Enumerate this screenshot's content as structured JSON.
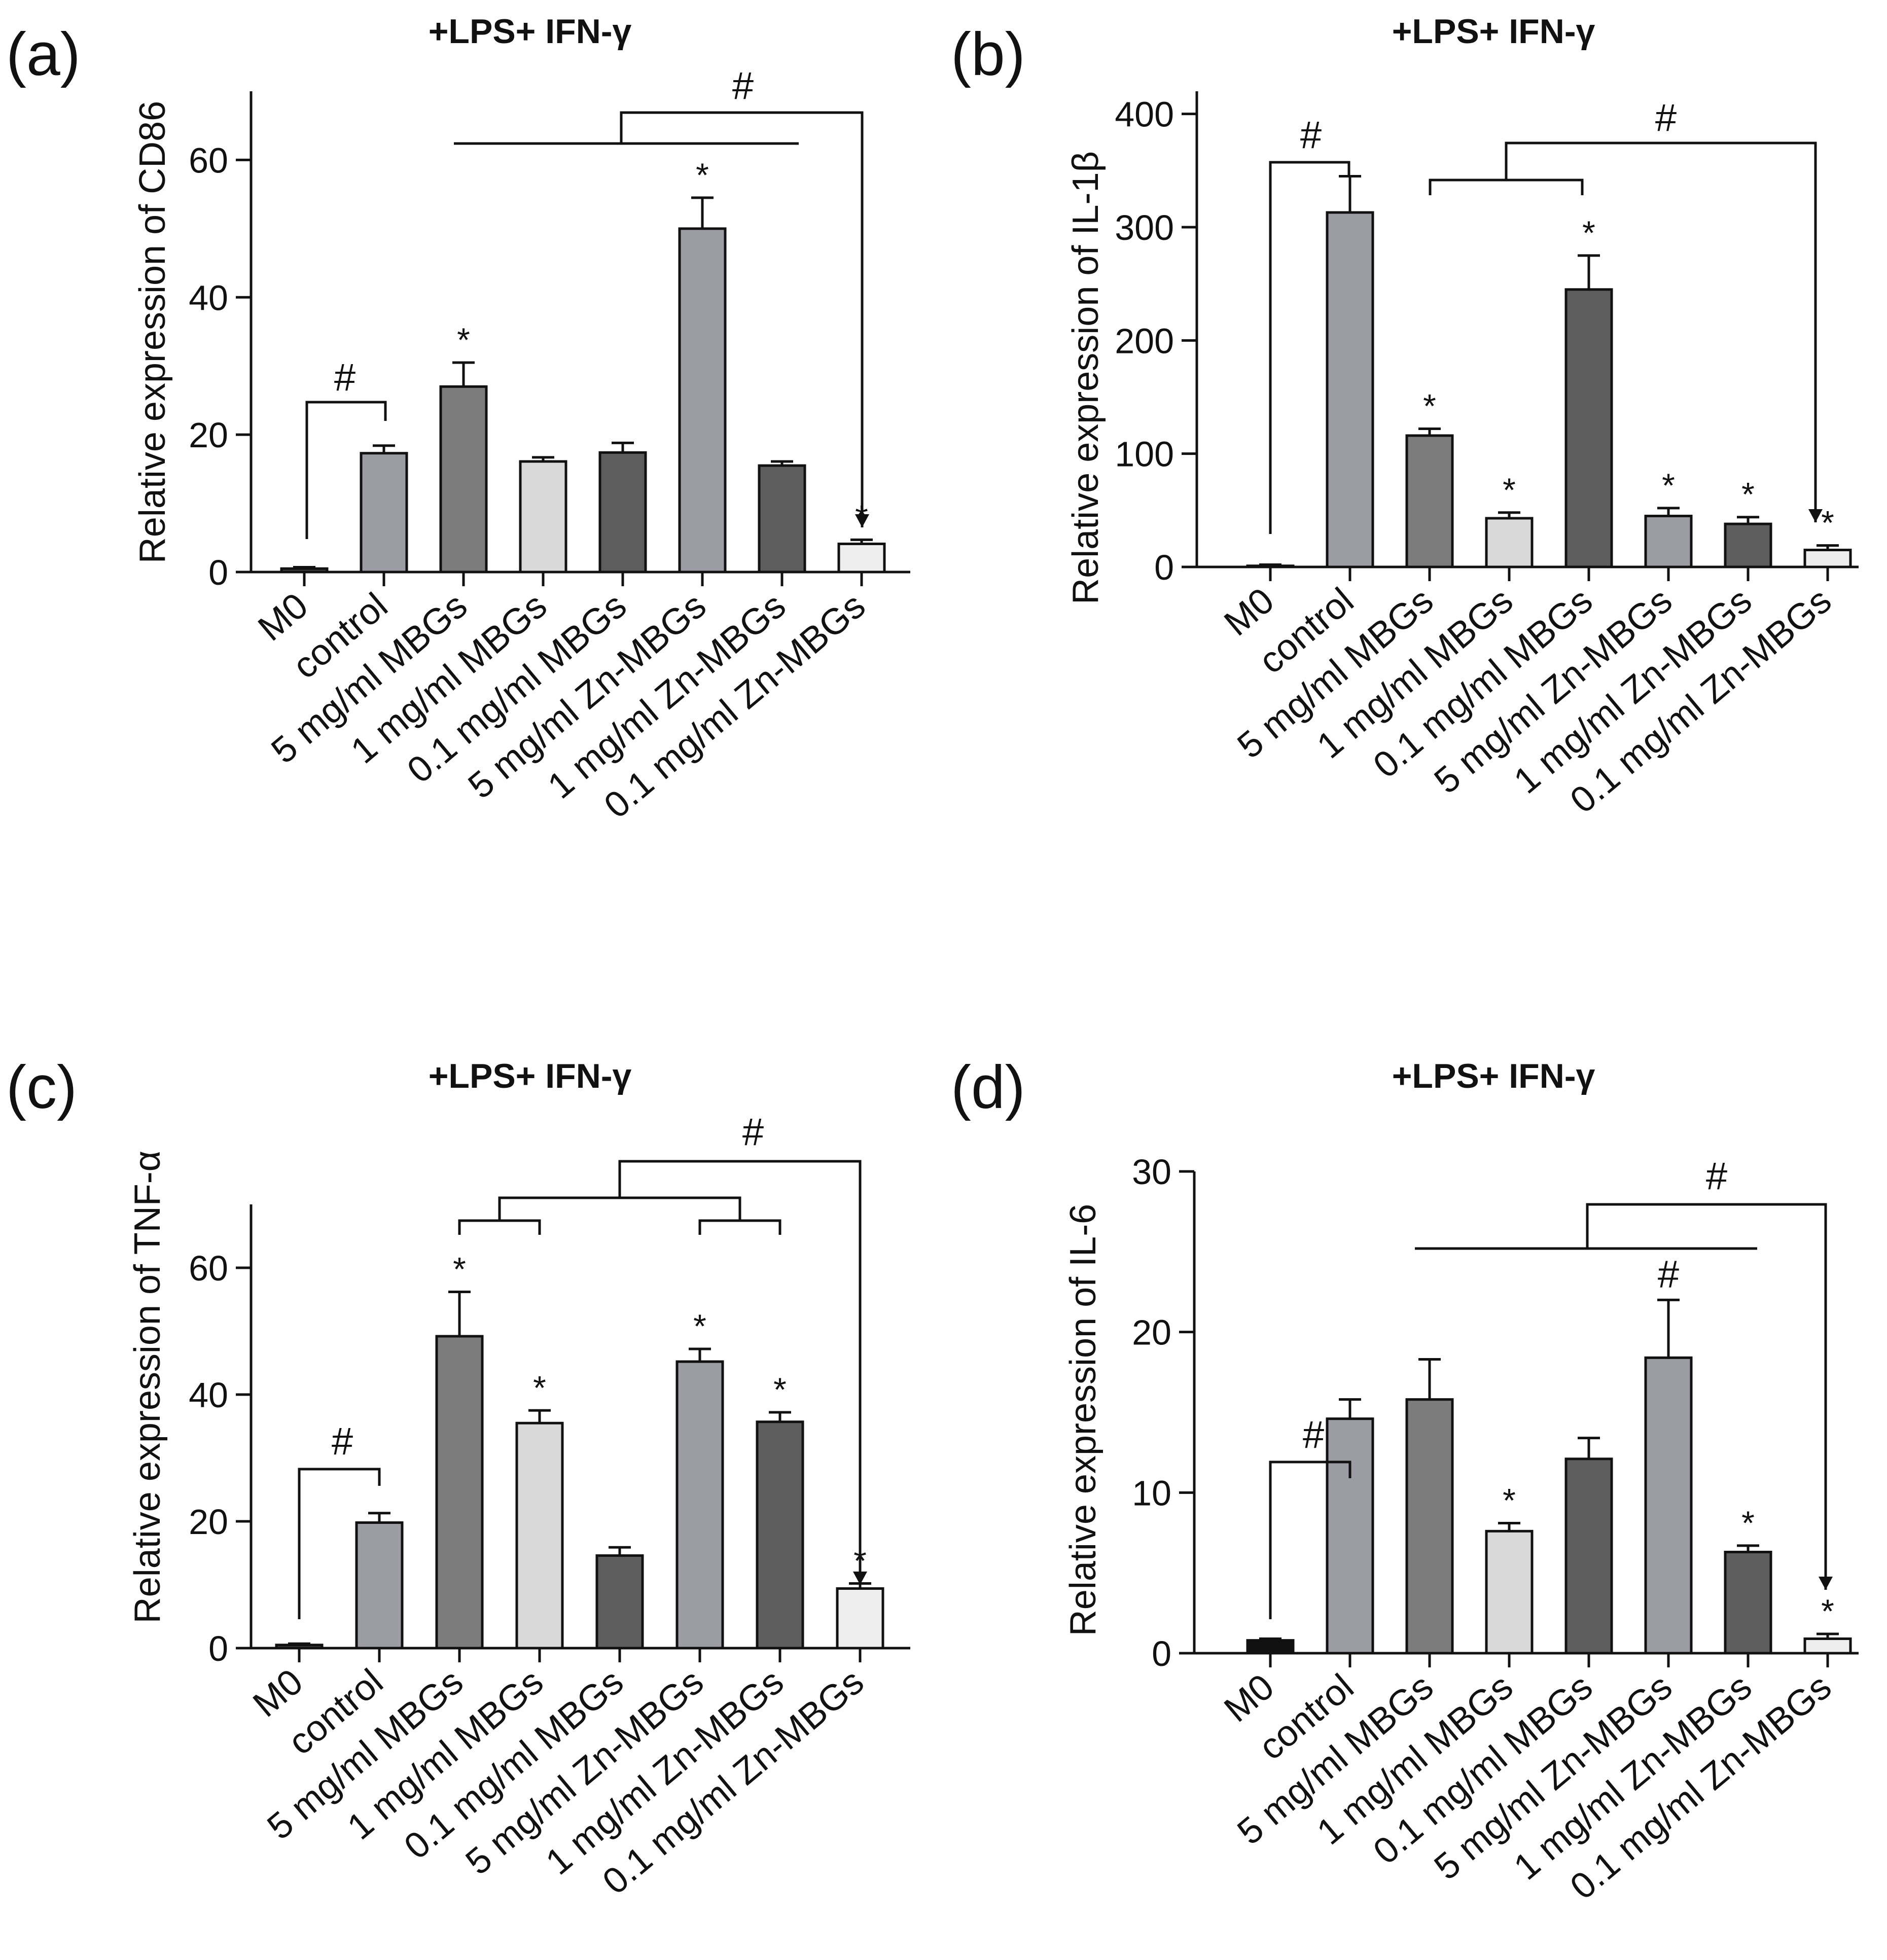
{
  "chart_data": [
    {
      "type": "bar",
      "panel": "(a)",
      "title": "+LPS+ IFN-γ",
      "ylabel": "Relative expression of  CD86",
      "ylim": [
        0,
        70
      ],
      "yticks": [
        0,
        20,
        40,
        60
      ],
      "categories": [
        "M0",
        "control",
        "5 mg/ml MBGs",
        "1 mg/ml MBGs",
        "0.1 mg/ml MBGs",
        "5 mg/ml Zn-MBGs",
        "1 mg/ml Zn-MBGs",
        "0.1 mg/ml Zn-MBGs"
      ],
      "values": [
        0.5,
        17.3,
        27,
        16.1,
        17.4,
        50,
        15.5,
        4.1
      ],
      "errors": [
        0.2,
        1.1,
        3.5,
        0.6,
        1.4,
        4.5,
        0.6,
        0.6
      ],
      "colors": [
        "#444444",
        "#9c9ca4",
        "#7c7c7c",
        "#d9d9d9",
        "#5d5d5d",
        "#9c9ca4",
        "#5d5d5d",
        "#eeeeee"
      ],
      "star_label": "*",
      "hash_label": "#",
      "stars": [
        2,
        5,
        7
      ]
    },
    {
      "type": "bar",
      "panel": "(b)",
      "title": "+LPS+ IFN-γ",
      "ylabel": "Relative expression of  IL-1β",
      "ylim": [
        0,
        420
      ],
      "yticks": [
        0,
        100,
        200,
        300,
        400
      ],
      "categories": [
        "M0",
        "control",
        "5 mg/ml MBGs",
        "1 mg/ml MBGs",
        "0.1 mg/ml MBGs",
        "5 mg/ml Zn-MBGs",
        "1 mg/ml Zn-MBGs",
        "0.1 mg/ml Zn-MBGs"
      ],
      "values": [
        1,
        313,
        116,
        43,
        245,
        45,
        38,
        15
      ],
      "errors": [
        1,
        32,
        6,
        5,
        30,
        7,
        6,
        4
      ],
      "colors": [
        "#444444",
        "#9c9ca4",
        "#7c7c7c",
        "#d9d9d9",
        "#5d5d5d",
        "#9c9ca4",
        "#5d5d5d",
        "#eeeeee"
      ],
      "star_label": "*",
      "hash_label": "#",
      "stars": [
        2,
        3,
        4,
        5,
        6,
        7
      ]
    },
    {
      "type": "bar",
      "panel": "(c)",
      "title": "+LPS+ IFN-γ",
      "ylabel": "Relative expression of   TNF-α",
      "ylim": [
        0,
        70
      ],
      "yticks": [
        0,
        20,
        40,
        60
      ],
      "categories": [
        "M0",
        "control",
        "5 mg/ml MBGs",
        "1 mg/ml MBGs",
        "0.1 mg/ml MBGs",
        "5 mg/ml Zn-MBGs",
        "1 mg/ml Zn-MBGs",
        "0.1 mg/ml Zn-MBGs"
      ],
      "values": [
        0.5,
        19.8,
        49.2,
        35.5,
        14.6,
        45.2,
        35.7,
        9.4
      ],
      "errors": [
        0.2,
        1.5,
        7,
        2,
        1.3,
        2,
        1.5,
        0.8
      ],
      "colors": [
        "#444444",
        "#9c9ca4",
        "#7c7c7c",
        "#d9d9d9",
        "#5d5d5d",
        "#9c9ca4",
        "#5d5d5d",
        "#eeeeee"
      ],
      "star_label": "*",
      "hash_label": "#",
      "stars": [
        2,
        3,
        5,
        6,
        7
      ]
    },
    {
      "type": "bar",
      "panel": "(d)",
      "title": "+LPS+ IFN-γ",
      "ylabel": "Relative expression of   IL-6",
      "ylim": [
        0,
        30
      ],
      "yticks": [
        0,
        10,
        20,
        30
      ],
      "categories": [
        "M0",
        "control",
        "5 mg/ml MBGs",
        "1 mg/ml MBGs",
        "0.1 mg/ml MBGs",
        "5 mg/ml Zn-MBGs",
        "1 mg/ml Zn-MBGs",
        "0.1 mg/ml Zn-MBGs"
      ],
      "values": [
        0.8,
        14.6,
        15.8,
        7.6,
        12.1,
        18.4,
        6.3,
        0.9
      ],
      "errors": [
        0.1,
        1.2,
        2.5,
        0.5,
        1.3,
        3.6,
        0.4,
        0.3
      ],
      "colors": [
        "#111111",
        "#9c9ca4",
        "#7c7c7c",
        "#d9d9d9",
        "#5d5d5d",
        "#9c9ca4",
        "#5d5d5d",
        "#eeeeee"
      ],
      "star_label": "*",
      "hash_label": "#",
      "stars": [
        3,
        6,
        7
      ],
      "bar_hash": [
        5
      ]
    }
  ]
}
